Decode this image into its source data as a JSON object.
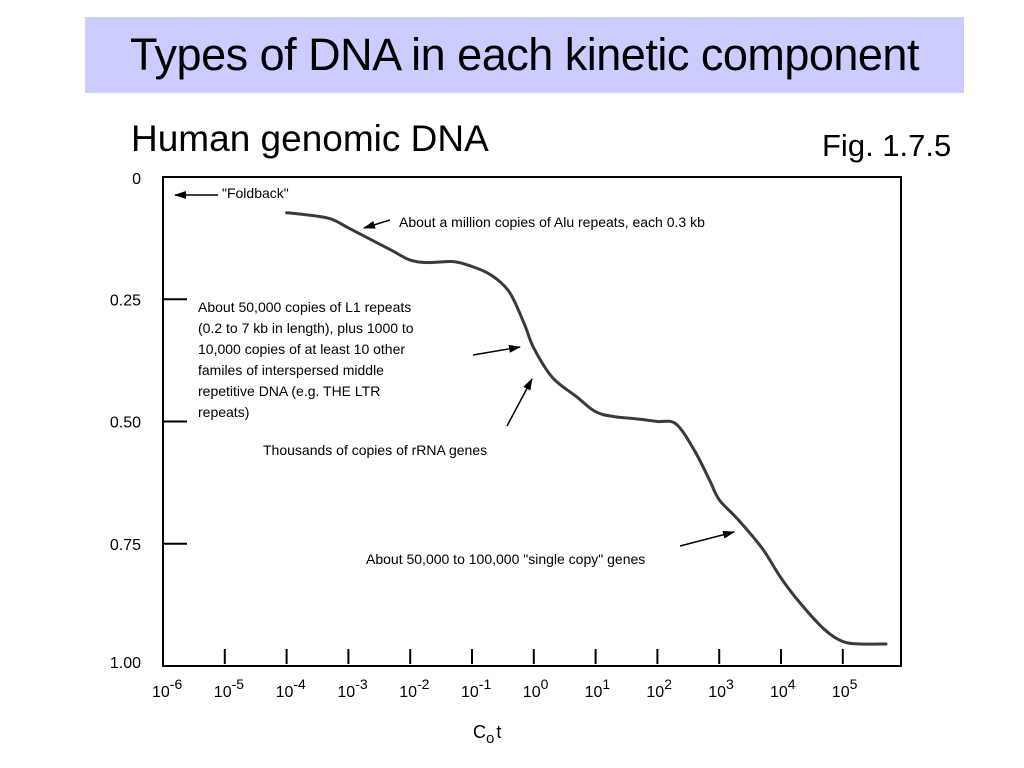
{
  "slide": {
    "title": "Types of DNA in each kinetic component",
    "subtitle": "Human genomic DNA",
    "figure_label": "Fig. 1.7.5",
    "title_bg": "#ccccff"
  },
  "chart_data": {
    "type": "line",
    "title": "",
    "xlabel": "C",
    "xlabel_sub": "o",
    "xlabel_suffix": "t",
    "ylabel": "",
    "x_scale": "log",
    "y_reversed": true,
    "xlim": [
      1e-06,
      1000000.0
    ],
    "ylim": [
      0,
      1
    ],
    "x_ticks": [
      {
        "base": "10",
        "exp": "-6"
      },
      {
        "base": "10",
        "exp": "-5"
      },
      {
        "base": "10",
        "exp": "-4"
      },
      {
        "base": "10",
        "exp": "-3"
      },
      {
        "base": "10",
        "exp": "-2"
      },
      {
        "base": "10",
        "exp": "-1"
      },
      {
        "base": "10",
        "exp": "0"
      },
      {
        "base": "10",
        "exp": "1"
      },
      {
        "base": "10",
        "exp": "2"
      },
      {
        "base": "10",
        "exp": "3"
      },
      {
        "base": "10",
        "exp": "4"
      },
      {
        "base": "10",
        "exp": "5"
      }
    ],
    "y_ticks": [
      {
        "value": 0,
        "label": "0"
      },
      {
        "value": 0.25,
        "label": "0.25"
      },
      {
        "value": 0.5,
        "label": "0.50"
      },
      {
        "value": 0.75,
        "label": "0.75"
      },
      {
        "value": 1.0,
        "label": "1.00"
      }
    ],
    "line_color": "#3a3a3a",
    "series": [
      {
        "x": [
          0.0001,
          0.0002,
          0.0005,
          0.001,
          0.002,
          0.005,
          0.01,
          0.02,
          0.05,
          0.1,
          0.2,
          0.4,
          0.7,
          1,
          2,
          5,
          10,
          20,
          50,
          100,
          200,
          400,
          700,
          1000,
          2000,
          5000,
          10000,
          20000,
          50000,
          100000,
          200000,
          500000
        ],
        "y": [
          0.073,
          0.077,
          0.085,
          0.104,
          0.124,
          0.15,
          0.17,
          0.175,
          0.173,
          0.183,
          0.2,
          0.235,
          0.3,
          0.35,
          0.41,
          0.45,
          0.48,
          0.49,
          0.495,
          0.5,
          0.505,
          0.56,
          0.62,
          0.66,
          0.7,
          0.76,
          0.82,
          0.87,
          0.925,
          0.95,
          0.955,
          0.955
        ]
      }
    ],
    "annotations": [
      {
        "id": "foldback",
        "lines": [
          "\"Foldback\""
        ]
      },
      {
        "id": "alu",
        "lines": [
          "About a million copies of Alu repeats, each 0.3 kb"
        ]
      },
      {
        "id": "l1",
        "lines": [
          "About 50,000 copies of L1 repeats",
          "(0.2 to 7 kb in length), plus 1000 to",
          "10,000 copies of at least 10 other",
          "familes of interspersed middle",
          "repetitive DNA (e.g. THE LTR",
          "repeats)"
        ]
      },
      {
        "id": "rrna",
        "lines": [
          "Thousands of copies of rRNA genes"
        ]
      },
      {
        "id": "single",
        "lines": [
          "About 50,000 to 100,000 \"single copy\" genes"
        ]
      }
    ]
  }
}
